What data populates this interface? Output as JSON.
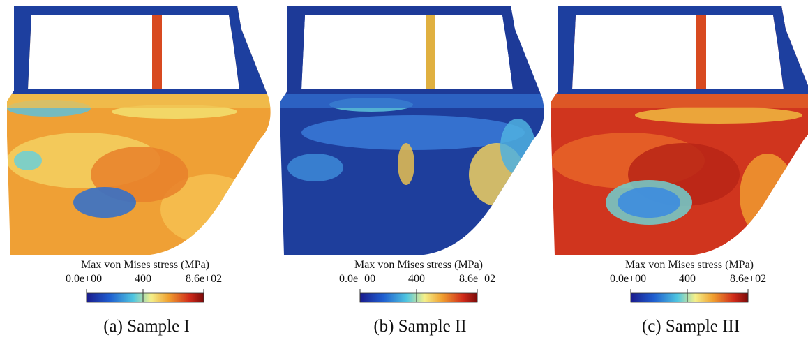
{
  "panels": [
    {
      "caption": "(a) Sample I",
      "colorbar": {
        "title": "Max von Mises stress (MPa)",
        "ticks": [
          "0.0e+00",
          "400",
          "8.6e+02"
        ]
      }
    },
    {
      "caption": "(b) Sample II",
      "colorbar": {
        "title": "Max von Mises stress (MPa)",
        "ticks": [
          "0.0e+00",
          "400",
          "8.6e+02"
        ]
      }
    },
    {
      "caption": "(c) Sample III",
      "colorbar": {
        "title": "Max von Mises stress (MPa)",
        "ticks": [
          "0.0e+00",
          "400",
          "8.6e+02"
        ]
      }
    }
  ]
}
